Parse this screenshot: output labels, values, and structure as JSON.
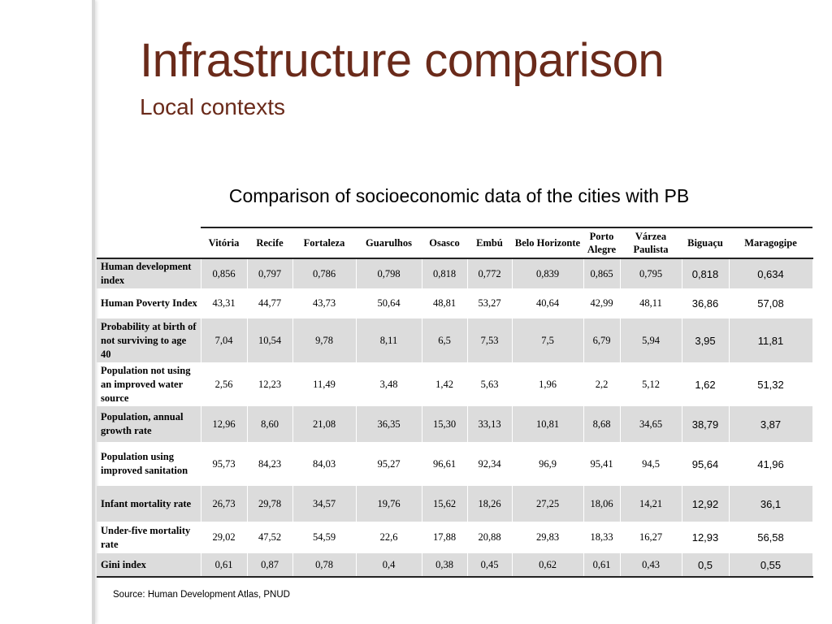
{
  "slide": {
    "title": "Infrastructure comparison",
    "subtitle": "Local contexts",
    "table_title": "Comparison of socioeconomic data of the cities with PB",
    "source": "Source: Human Development Atlas, PNUD"
  },
  "table": {
    "columns": [
      "Vitória",
      "Recife",
      "Fortaleza",
      "Guarulhos",
      "Osasco",
      "Embú",
      "Belo Horizonte",
      "Porto Alegre",
      "Várzea Paulista",
      "Biguaçu",
      "Maragogipe"
    ],
    "rows": [
      {
        "label": "Human development index",
        "values": [
          "0,856",
          "0,797",
          "0,786",
          "0,798",
          "0,818",
          "0,772",
          "0,839",
          "0,865",
          "0,795",
          "0,818",
          "0,634"
        ]
      },
      {
        "label": "Human Poverty Index",
        "values": [
          "43,31",
          "44,77",
          "43,73",
          "50,64",
          "48,81",
          "53,27",
          "40,64",
          "42,99",
          "48,11",
          "36,86",
          "57,08"
        ]
      },
      {
        "label": "Probability at birth of not surviving to age 40",
        "values": [
          "7,04",
          "10,54",
          "9,78",
          "8,11",
          "6,5",
          "7,53",
          "7,5",
          "6,79",
          "5,94",
          "3,95",
          "11,81"
        ]
      },
      {
        "label": "Population not using an improved water source",
        "values": [
          "2,56",
          "12,23",
          "11,49",
          "3,48",
          "1,42",
          "5,63",
          "1,96",
          "2,2",
          "5,12",
          "1,62",
          "51,32"
        ]
      },
      {
        "label": "Population, annual growth rate",
        "values": [
          "12,96",
          "8,60",
          "21,08",
          "36,35",
          "15,30",
          "33,13",
          "10,81",
          "8,68",
          "34,65",
          "38,79",
          "3,87"
        ]
      },
      {
        "label": "Population using improved sanitation",
        "values": [
          "95,73",
          "84,23",
          "84,03",
          "95,27",
          "96,61",
          "92,34",
          "96,9",
          "95,41",
          "94,5",
          "95,64",
          "41,96"
        ]
      },
      {
        "label": "Infant mortality rate",
        "values": [
          "26,73",
          "29,78",
          "34,57",
          "19,76",
          "15,62",
          "18,26",
          "27,25",
          "18,06",
          "14,21",
          "12,92",
          "36,1"
        ]
      },
      {
        "label": "Under-five mortality rate",
        "values": [
          "29,02",
          "47,52",
          "54,59",
          "22,6",
          "17,88",
          "20,88",
          "29,83",
          "18,33",
          "16,27",
          "12,93",
          "56,58"
        ]
      },
      {
        "label": "Gini index",
        "values": [
          "0,61",
          "0,87",
          "0,78",
          "0,4",
          "0,38",
          "0,45",
          "0,62",
          "0,61",
          "0,43",
          "0,5",
          "0,55"
        ]
      }
    ]
  },
  "colors": {
    "title": "#6a2a1a",
    "row_shade": "#dcdcdc"
  }
}
